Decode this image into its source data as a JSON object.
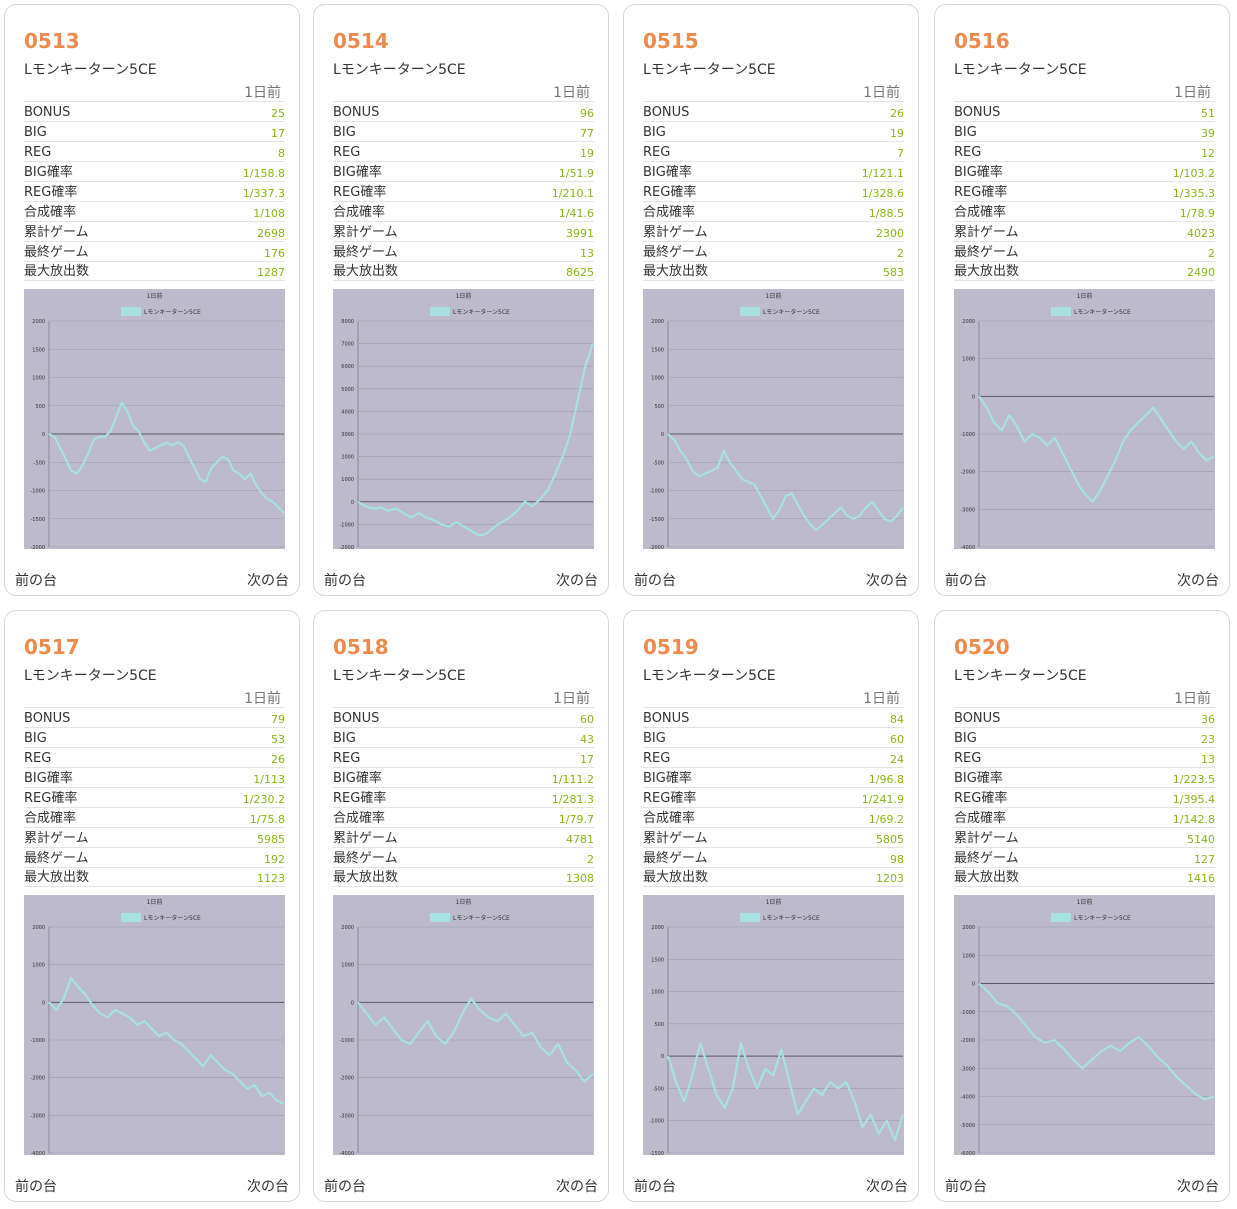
{
  "labels": [
    "BONUS",
    "BIG",
    "REG",
    "BIG確率",
    "REG確率",
    "合成確率",
    "累計ゲーム",
    "最終ゲーム",
    "最大放出数"
  ],
  "nav": {
    "prev": "前の台",
    "next": "次の台"
  },
  "colors": {
    "accent": "#ee8a4c",
    "value": "#8ab415",
    "graph_bg": "#bdbacb",
    "line": "#a7e1e1"
  },
  "machines": [
    {
      "number": "0513",
      "name": "Lモンキーターン5CE",
      "day": "1日前",
      "values": [
        "25",
        "17",
        "8",
        "1/158.8",
        "1/337.3",
        "1/108",
        "2698",
        "176",
        "1287"
      ],
      "chart_data": {
        "type": "line",
        "title": "1日前",
        "legend": "Lモンキーターン5CE",
        "ylim": [
          -2000,
          2000
        ],
        "yticks": [
          "2000",
          "1500",
          "1000",
          "500",
          "0",
          "-500",
          "-1000",
          "-1500",
          "-2000"
        ],
        "values": [
          0,
          -50,
          -250,
          -450,
          -650,
          -700,
          -550,
          -350,
          -100,
          -50,
          -50,
          50,
          300,
          550,
          400,
          150,
          50,
          -150,
          -300,
          -250,
          -200,
          -150,
          -200,
          -150,
          -200,
          -400,
          -600,
          -800,
          -850,
          -600,
          -500,
          -400,
          -450,
          -650,
          -700,
          -800,
          -700,
          -900,
          -1050,
          -1150,
          -1200,
          -1300,
          -1400
        ]
      }
    },
    {
      "number": "0514",
      "name": "Lモンキーターン5CE",
      "day": "1日前",
      "values": [
        "96",
        "77",
        "19",
        "1/51.9",
        "1/210.1",
        "1/41.6",
        "3991",
        "13",
        "8625"
      ],
      "chart_data": {
        "type": "line",
        "title": "1日前",
        "legend": "Lモンキーターン5CE",
        "ylim": [
          -2000,
          8000
        ],
        "yticks": [
          "8000",
          "7000",
          "6000",
          "5000",
          "4000",
          "3000",
          "2000",
          "1000",
          "0",
          "-1000",
          "-2000"
        ],
        "values": [
          0,
          -200,
          -300,
          -250,
          -400,
          -300,
          -500,
          -700,
          -500,
          -700,
          -800,
          -1000,
          -1100,
          -900,
          -1100,
          -1300,
          -1500,
          -1400,
          -1100,
          -900,
          -700,
          -400,
          0,
          -200,
          100,
          500,
          1200,
          2000,
          3000,
          4500,
          6000,
          7000
        ]
      }
    },
    {
      "number": "0515",
      "name": "Lモンキーターン5CE",
      "day": "1日前",
      "values": [
        "26",
        "19",
        "7",
        "1/121.1",
        "1/328.6",
        "1/88.5",
        "2300",
        "2",
        "583"
      ],
      "chart_data": {
        "type": "line",
        "title": "1日前",
        "legend": "Lモンキーターン5CE",
        "ylim": [
          -2000,
          2000
        ],
        "yticks": [
          "2000",
          "1500",
          "1000",
          "500",
          "0",
          "-500",
          "-1000",
          "-1500",
          "-2000"
        ],
        "values": [
          0,
          -100,
          -300,
          -450,
          -650,
          -750,
          -700,
          -650,
          -600,
          -300,
          -500,
          -650,
          -800,
          -850,
          -900,
          -1100,
          -1300,
          -1500,
          -1350,
          -1100,
          -1050,
          -1250,
          -1450,
          -1600,
          -1700,
          -1600,
          -1500,
          -1400,
          -1300,
          -1450,
          -1500,
          -1450,
          -1300,
          -1200,
          -1350,
          -1500,
          -1550,
          -1450,
          -1300
        ]
      }
    },
    {
      "number": "0516",
      "name": "Lモンキーターン5CE",
      "day": "1日前",
      "values": [
        "51",
        "39",
        "12",
        "1/103.2",
        "1/335.3",
        "1/78.9",
        "4023",
        "2",
        "2490"
      ],
      "chart_data": {
        "type": "line",
        "title": "1日前",
        "legend": "Lモンキーターン5CE",
        "ylim": [
          -4000,
          2000
        ],
        "yticks": [
          "2000",
          "1000",
          "0",
          "-1000",
          "-2000",
          "-3000",
          "-4000"
        ],
        "values": [
          0,
          -300,
          -700,
          -900,
          -500,
          -800,
          -1200,
          -1000,
          -1100,
          -1300,
          -1100,
          -1500,
          -1900,
          -2300,
          -2600,
          -2800,
          -2500,
          -2100,
          -1700,
          -1200,
          -900,
          -700,
          -500,
          -300,
          -600,
          -900,
          -1200,
          -1400,
          -1200,
          -1500,
          -1700,
          -1600
        ]
      }
    },
    {
      "number": "0517",
      "name": "Lモンキーターン5CE",
      "day": "1日前",
      "values": [
        "79",
        "53",
        "26",
        "1/113",
        "1/230.2",
        "1/75.8",
        "5985",
        "192",
        "1123"
      ],
      "chart_data": {
        "type": "line",
        "title": "1日前",
        "legend": "Lモンキーターン5CE",
        "ylim": [
          -4000,
          2000
        ],
        "yticks": [
          "2000",
          "1000",
          "0",
          "-1000",
          "-2000",
          "-3000",
          "-4000"
        ],
        "values": [
          0,
          -200,
          100,
          650,
          400,
          200,
          -100,
          -300,
          -400,
          -200,
          -300,
          -400,
          -600,
          -500,
          -700,
          -900,
          -800,
          -1000,
          -1100,
          -1300,
          -1500,
          -1700,
          -1400,
          -1600,
          -1800,
          -1900,
          -2100,
          -2300,
          -2200,
          -2500,
          -2400,
          -2600,
          -2700
        ]
      }
    },
    {
      "number": "0518",
      "name": "Lモンキーターン5CE",
      "day": "1日前",
      "values": [
        "60",
        "43",
        "17",
        "1/111.2",
        "1/281.3",
        "1/79.7",
        "4781",
        "2",
        "1308"
      ],
      "chart_data": {
        "type": "line",
        "title": "1日前",
        "legend": "Lモンキーターン5CE",
        "ylim": [
          -4000,
          2000
        ],
        "yticks": [
          "2000",
          "1000",
          "0",
          "-1000",
          "-2000",
          "-3000",
          "-4000"
        ],
        "values": [
          0,
          -300,
          -600,
          -400,
          -700,
          -1000,
          -1100,
          -800,
          -500,
          -900,
          -1100,
          -800,
          -300,
          100,
          -200,
          -400,
          -500,
          -300,
          -600,
          -900,
          -800,
          -1200,
          -1400,
          -1100,
          -1600,
          -1800,
          -2100,
          -1900
        ]
      }
    },
    {
      "number": "0519",
      "name": "Lモンキーターン5CE",
      "day": "1日前",
      "values": [
        "84",
        "60",
        "24",
        "1/96.8",
        "1/241.9",
        "1/69.2",
        "5805",
        "98",
        "1203"
      ],
      "chart_data": {
        "type": "line",
        "title": "1日前",
        "legend": "Lモンキーターン5CE",
        "ylim": [
          -1500,
          2000
        ],
        "yticks": [
          "2000",
          "1500",
          "1000",
          "500",
          "0",
          "-500",
          "-1000",
          "-1500"
        ],
        "values": [
          0,
          -400,
          -700,
          -300,
          200,
          -200,
          -600,
          -800,
          -500,
          200,
          -200,
          -500,
          -200,
          -300,
          100,
          -400,
          -900,
          -700,
          -500,
          -600,
          -400,
          -500,
          -400,
          -700,
          -1100,
          -900,
          -1200,
          -1000,
          -1300,
          -900
        ]
      }
    },
    {
      "number": "0520",
      "name": "Lモンキーターン5CE",
      "day": "1日前",
      "values": [
        "36",
        "23",
        "13",
        "1/223.5",
        "1/395.4",
        "1/142.8",
        "5140",
        "127",
        "1416"
      ],
      "chart_data": {
        "type": "line",
        "title": "1日前",
        "legend": "Lモンキーターン5CE",
        "ylim": [
          -6000,
          2000
        ],
        "yticks": [
          "2000",
          "1000",
          "0",
          "-1000",
          "-2000",
          "-3000",
          "-4000",
          "-5000",
          "-6000"
        ],
        "values": [
          0,
          -300,
          -700,
          -800,
          -1100,
          -1500,
          -1900,
          -2100,
          -2000,
          -2300,
          -2700,
          -3000,
          -2700,
          -2400,
          -2200,
          -2400,
          -2100,
          -1900,
          -2200,
          -2600,
          -2900,
          -3300,
          -3600,
          -3900,
          -4100,
          -4000
        ]
      }
    }
  ]
}
